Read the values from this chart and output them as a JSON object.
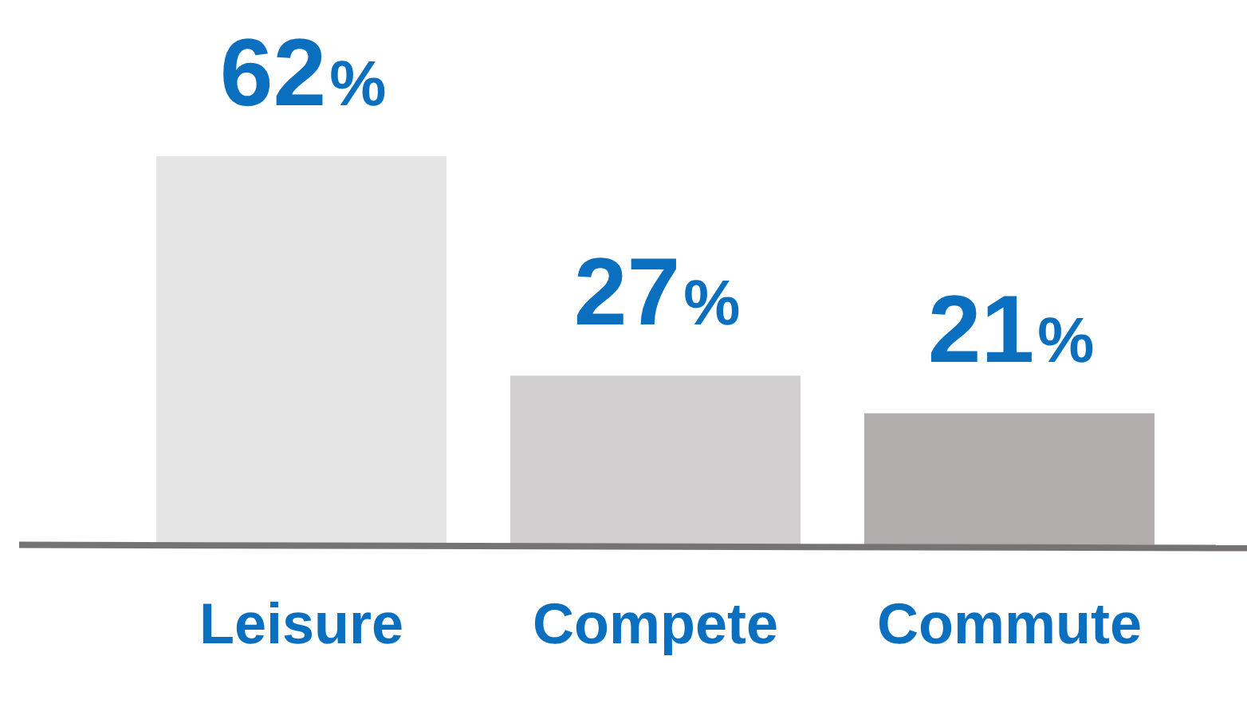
{
  "chart_data": {
    "type": "bar",
    "categories": [
      "Leisure",
      "Compete",
      "Commute"
    ],
    "values": [
      62,
      27,
      21
    ],
    "value_labels": [
      "62%",
      "27%",
      "21%"
    ],
    "colors": [
      "#e5e5e5",
      "#d0cecf",
      "#b0adac"
    ],
    "grid": false,
    "legend": false
  }
}
